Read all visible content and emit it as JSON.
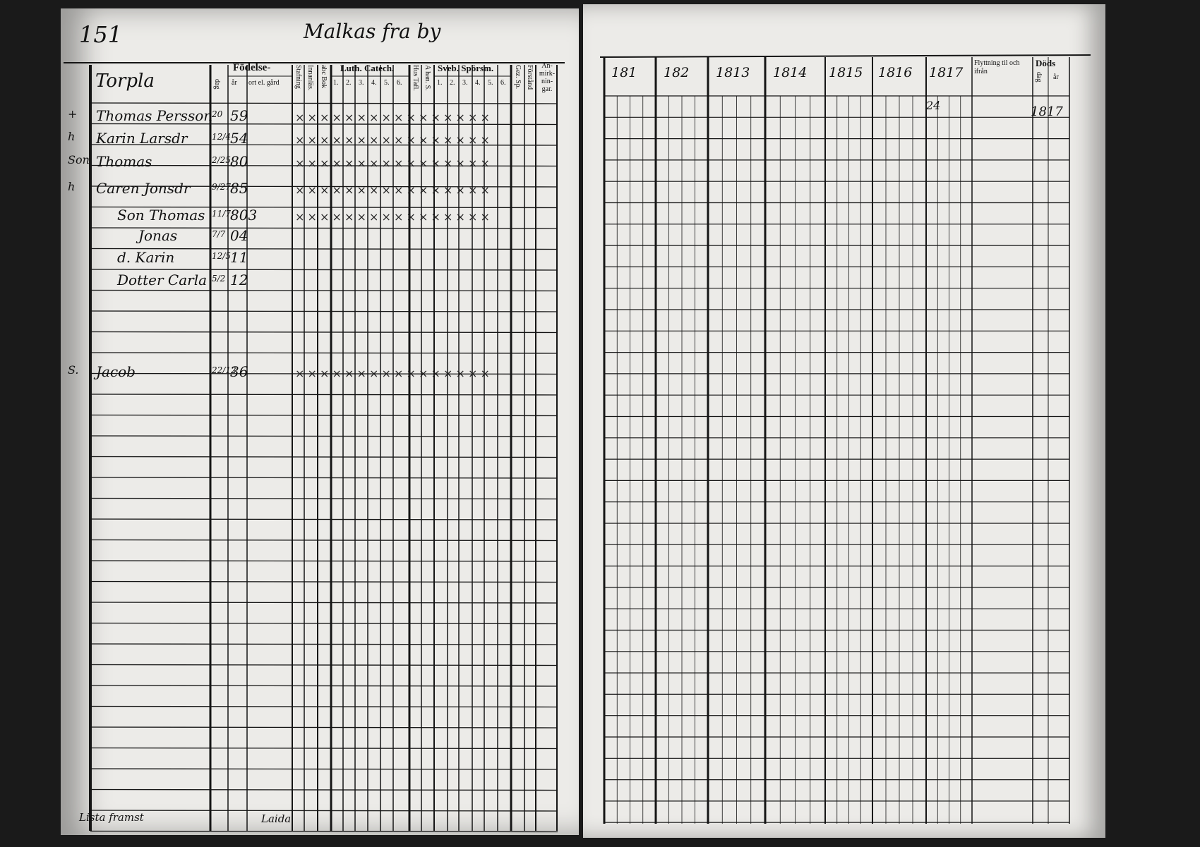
{
  "page_number": "151",
  "page_heading": "Malkas fra by",
  "left_page": {
    "headers": {
      "torp": "Torpla",
      "fodelse": "Födelse-",
      "dag": "dag",
      "ar": "år",
      "ort": "ort el. gård",
      "stafning": "Stafning",
      "innanlasning": "Innanläs.",
      "abc_bok": "abc Bok",
      "luth_catech": "Luth. Catech.",
      "luth_sub": [
        "1.",
        "2.",
        "3.",
        "4.",
        "5.",
        "6."
      ],
      "hus_tafl": "Hus Tafl.",
      "a_han": "A han. S.",
      "sveb_sporsm": "Sveb. Spörsm.",
      "sveb_sub": [
        "1.",
        "2.",
        "3.",
        "4.",
        "5.",
        "6."
      ],
      "gez_sp": "Gez. Sp.",
      "forstand": "Förstånd",
      "anmarkningar": "An-mirk-nin-gar."
    },
    "rows": [
      {
        "mark": "+",
        "name": "Thomas Persson",
        "day": "20",
        "year": "59"
      },
      {
        "mark": "h",
        "name": "Karin Larsdr",
        "day": "12/4",
        "year": "54"
      },
      {
        "mark": "Son",
        "name": "Thomas",
        "day": "2/25",
        "year": "80"
      },
      {
        "mark": "h",
        "name": "Caren Jonsdr",
        "day": "9/27",
        "year": "85"
      },
      {
        "mark": "",
        "name": "Son Thomas",
        "day": "11/7",
        "year": "803"
      },
      {
        "mark": "",
        "name": "Jonas",
        "day": "7/7",
        "year": "04"
      },
      {
        "mark": "",
        "name": "d. Karin",
        "day": "12/5",
        "year": "11"
      },
      {
        "mark": "",
        "name": "Dotter Carla",
        "day": "5/2",
        "year": "12"
      },
      {
        "mark": "S.",
        "name": "Jacob",
        "day": "22/12",
        "year": "36"
      }
    ],
    "footer_note": "Lista framst",
    "footer_note_2": "Laida"
  },
  "right_page": {
    "year_headers": [
      "181",
      "182",
      "1813",
      "1814",
      "1815",
      "1816",
      "1817"
    ],
    "flyttning": "Flyttning til och ifrån",
    "dods": "Döds",
    "dag": "dag",
    "ar": "år",
    "death_entry": "1817",
    "entry_1816": "24"
  }
}
